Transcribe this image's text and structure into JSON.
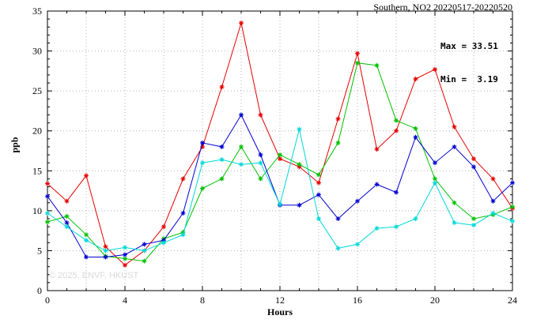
{
  "title": "Southern, NO2 20220517-20220520",
  "stats": {
    "max_label": "Max = 33.51",
    "min_label": "Min =  3.19"
  },
  "watermark": "© 2025, ENVF, HKUST",
  "chart_data": {
    "type": "line",
    "title": "Southern, NO2 20220517-20220520",
    "xlabel": "Hours",
    "ylabel": "ppb",
    "xlim": [
      0,
      24
    ],
    "ylim": [
      0,
      35
    ],
    "xticks": [
      0,
      4,
      8,
      12,
      16,
      20,
      24
    ],
    "yticks": [
      0,
      5,
      10,
      15,
      20,
      25,
      30,
      35
    ],
    "x_minor_step": 1,
    "grid_x_step": 2,
    "grid_y_step": 5,
    "grid": "dotted",
    "legend": "none",
    "max": 33.51,
    "min": 3.19,
    "x": [
      0,
      1,
      2,
      3,
      4,
      5,
      6,
      7,
      8,
      9,
      10,
      11,
      12,
      13,
      14,
      15,
      16,
      17,
      18,
      19,
      20,
      21,
      22,
      23,
      24
    ],
    "series": [
      {
        "name": "day-red",
        "color": "#e60000",
        "values": [
          13.4,
          11.2,
          14.4,
          5.5,
          3.19,
          5.0,
          8.0,
          14.0,
          18.0,
          25.5,
          33.51,
          22.0,
          16.5,
          15.5,
          13.5,
          21.5,
          29.7,
          17.7,
          20.0,
          26.5,
          27.7,
          20.5,
          16.5,
          14.0,
          10.3
        ]
      },
      {
        "name": "day-green",
        "color": "#00c000",
        "values": [
          8.6,
          9.3,
          7.0,
          4.3,
          4.0,
          3.7,
          6.5,
          7.3,
          12.8,
          14.0,
          18.0,
          14.0,
          17.0,
          15.8,
          14.5,
          18.5,
          28.5,
          28.2,
          21.3,
          20.3,
          14.0,
          11.0,
          9.0,
          9.5,
          10.5
        ]
      },
      {
        "name": "day-blue",
        "color": "#0000d0",
        "values": [
          11.8,
          8.5,
          4.2,
          4.2,
          4.5,
          5.8,
          6.3,
          9.7,
          18.5,
          18.0,
          22.0,
          17.0,
          10.7,
          10.7,
          12.0,
          9.0,
          11.2,
          13.3,
          12.3,
          19.2,
          16.0,
          18.0,
          15.5,
          11.2,
          13.5
        ]
      },
      {
        "name": "day-cyan",
        "color": "#00d8d8",
        "values": [
          9.7,
          8.0,
          6.3,
          5.0,
          5.4,
          5.0,
          6.0,
          7.0,
          16.0,
          16.4,
          15.8,
          16.0,
          10.8,
          20.2,
          9.0,
          5.3,
          5.8,
          7.8,
          8.0,
          9.0,
          13.5,
          8.5,
          8.2,
          9.7,
          8.7
        ]
      }
    ]
  }
}
